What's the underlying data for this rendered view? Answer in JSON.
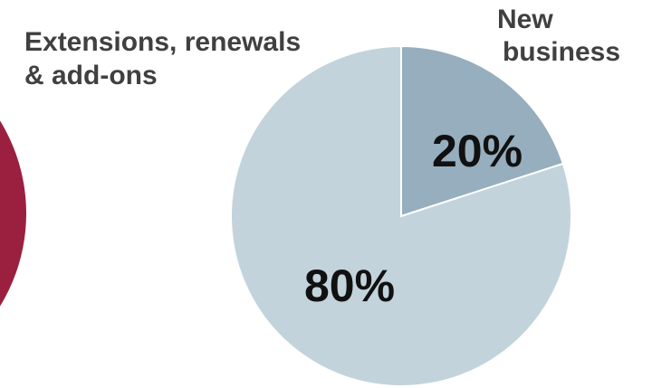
{
  "chart_data": {
    "type": "pie",
    "slices": [
      {
        "label_lines": [
          "New",
          "business"
        ],
        "value": 20,
        "value_label": "20%",
        "color": "#96aebd"
      },
      {
        "label_lines": [
          "Extensions, renewals",
          "& add-ons"
        ],
        "value": 80,
        "value_label": "80%",
        "color": "#c3d3dc"
      }
    ],
    "start_angle": "12 o'clock",
    "direction": "clockwise",
    "slice_border_color": "#ffffff",
    "partial_neighbor_shape_color": "#9b1f3f"
  }
}
